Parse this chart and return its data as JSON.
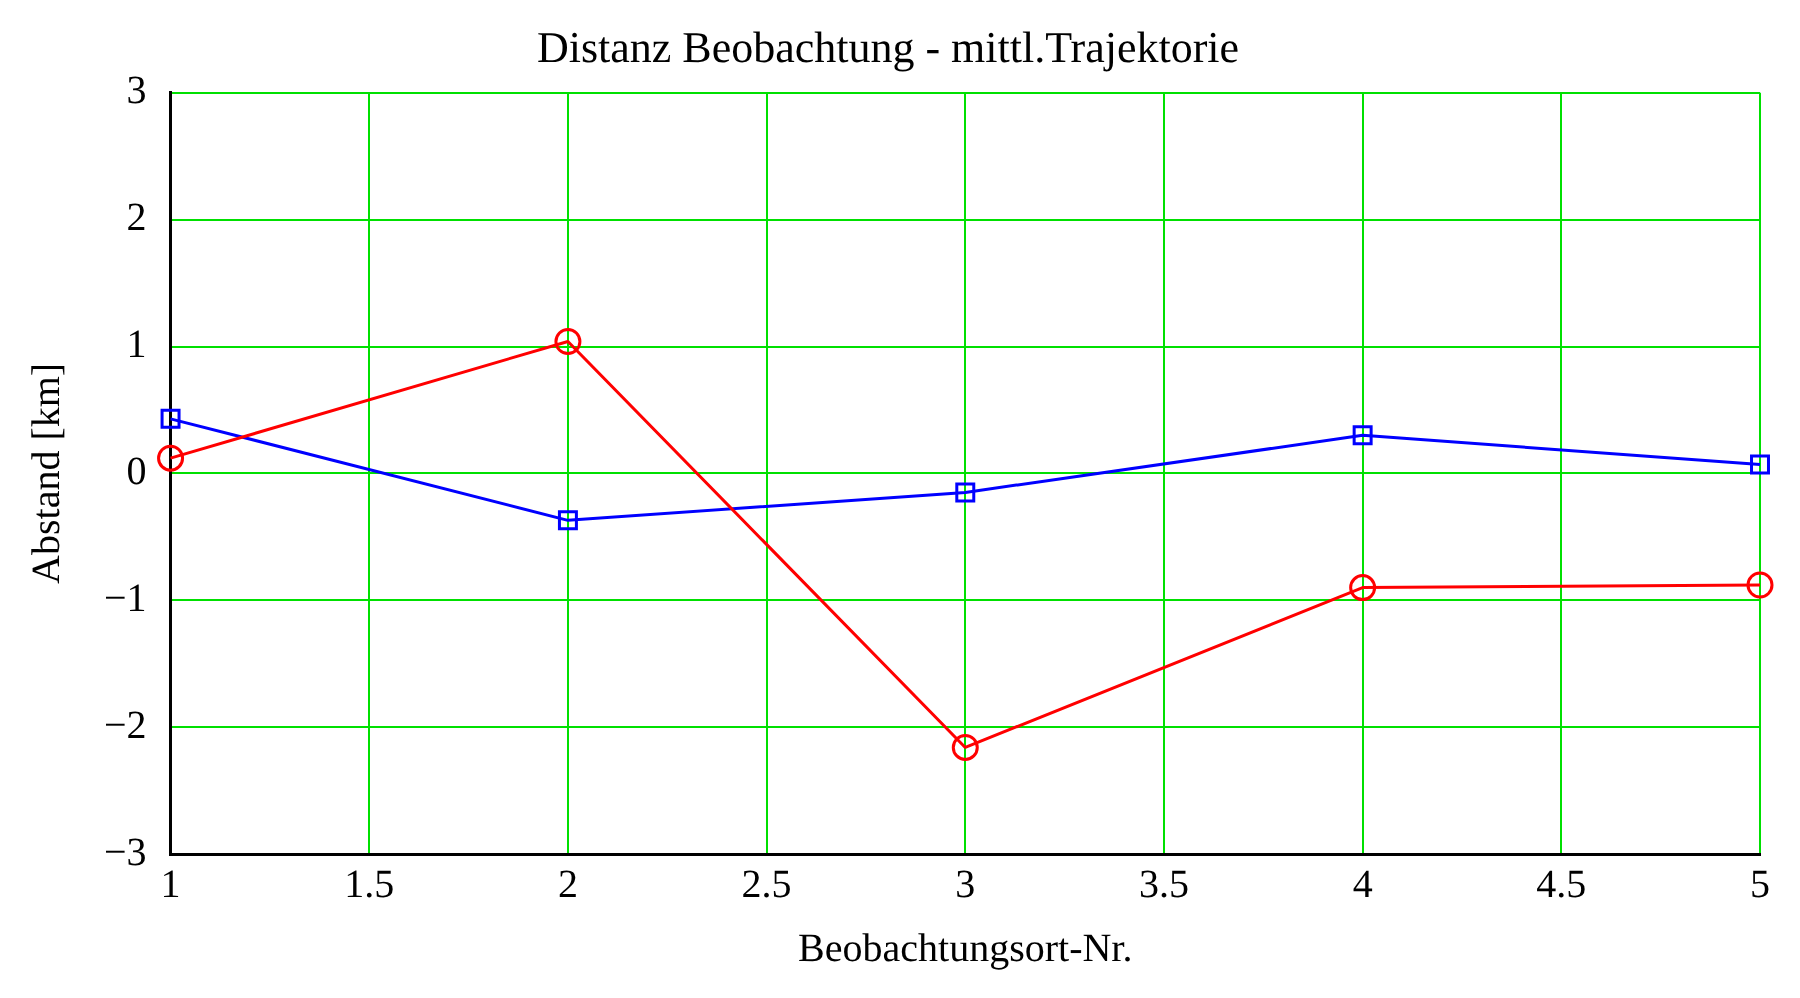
{
  "chart_data": {
    "type": "line",
    "title": "Distanz Beobachtung - mittl.Trajektorie",
    "xlabel": "Beobachtungsort-Nr.",
    "ylabel": "Abstand [km]",
    "x": [
      1,
      2,
      3,
      4,
      5
    ],
    "series": [
      {
        "color": "#ff0000",
        "marker": "circle",
        "values": [
          0.12,
          1.04,
          -2.16,
          -0.9,
          -0.88
        ]
      },
      {
        "color": "#0000ff",
        "marker": "square",
        "values": [
          0.43,
          -0.37,
          -0.15,
          0.3,
          0.07
        ]
      }
    ],
    "xlim": [
      1,
      5
    ],
    "xticks": [
      1,
      1.5,
      2,
      2.5,
      3,
      3.5,
      4,
      4.5,
      5
    ],
    "ylim": [
      -3,
      3
    ],
    "yticks": [
      {
        "value": -3,
        "label": "−3"
      },
      {
        "value": -2,
        "label": "−2"
      },
      {
        "value": -1,
        "label": "−1"
      },
      0,
      1,
      2,
      3
    ],
    "grid": true,
    "legend": false,
    "line_style": "solid"
  }
}
